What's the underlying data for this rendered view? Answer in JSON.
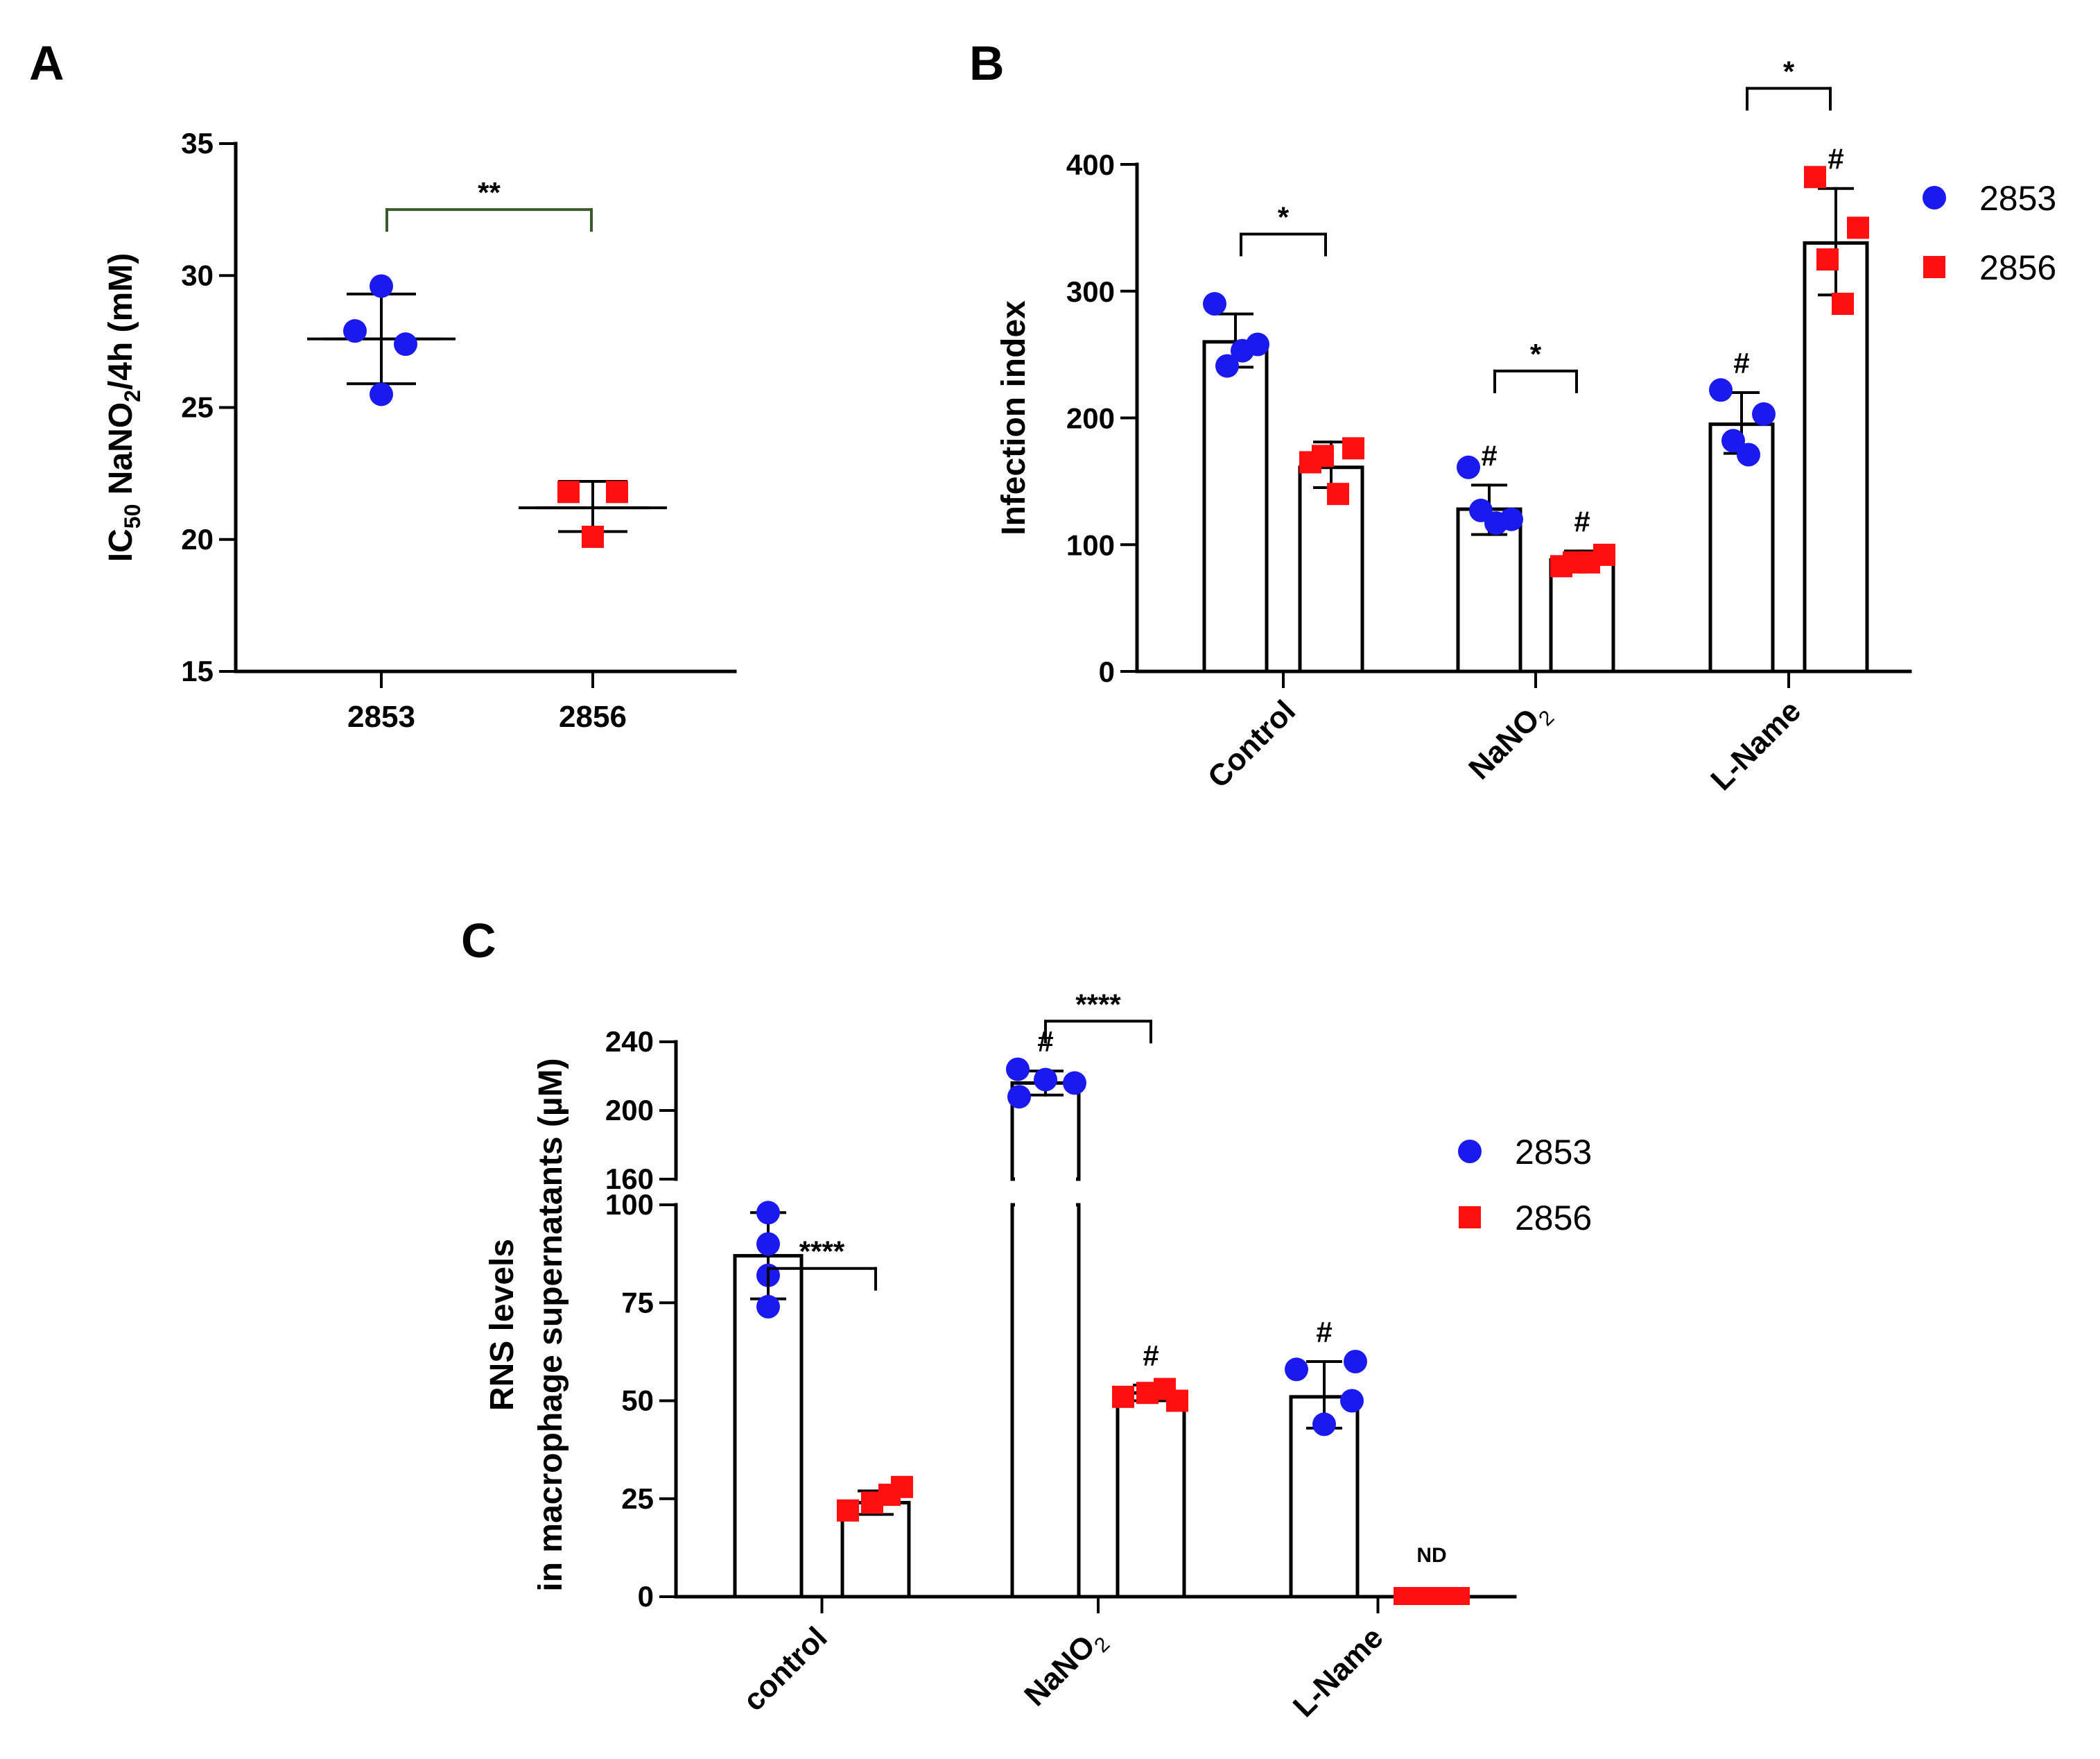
{
  "colors": {
    "s2853": "#1a1aee",
    "s2856": "#ff1010",
    "axis": "#000000",
    "bracketA": "#3a5a2a"
  },
  "chart_data": [
    {
      "panel": "A",
      "type": "scatter",
      "ylabel_parts": [
        "IC",
        "50",
        " NaNO",
        "2",
        "/4h (mM)"
      ],
      "categories": [
        "2853",
        "2856"
      ],
      "ylim": [
        15,
        35
      ],
      "yticks": [
        15,
        20,
        25,
        30,
        35
      ],
      "series": [
        {
          "key": "s2853",
          "category": "2853",
          "marker": "circle",
          "points": [
            29.6,
            27.9,
            27.4,
            25.5
          ],
          "mean": 27.6,
          "sd_low": 25.9,
          "sd_high": 29.3
        },
        {
          "key": "s2856",
          "category": "2856",
          "marker": "square",
          "points": [
            21.8,
            21.8,
            20.1
          ],
          "mean": 21.2,
          "sd_low": 20.3,
          "sd_high": 22.2
        }
      ],
      "significance": [
        {
          "from": "2853",
          "to": "2856",
          "label": "**",
          "y": 32.5
        }
      ]
    },
    {
      "panel": "B",
      "type": "bar",
      "ylabel": "Infection index",
      "categories": [
        {
          "label": "Control",
          "sub": ""
        },
        {
          "label": "NaNO",
          "sub": "2"
        },
        {
          "label": "L-Name",
          "sub": ""
        }
      ],
      "ylim": [
        0,
        400
      ],
      "yticks": [
        0,
        100,
        200,
        300,
        400
      ],
      "series": [
        {
          "name": "2853",
          "key": "s2853",
          "marker": "circle",
          "means": [
            260,
            128,
            195
          ],
          "sd": [
            [
              240,
              282
            ],
            [
              108,
              147
            ],
            [
              172,
              220
            ]
          ],
          "points": [
            [
              290,
              258,
              241,
              253
            ],
            [
              161,
              120,
              127,
              117
            ],
            [
              222,
              203,
              182,
              171
            ]
          ],
          "hash": [
            "",
            "#",
            "#"
          ]
        },
        {
          "name": "2856",
          "key": "s2856",
          "marker": "square",
          "means": [
            161,
            88,
            338
          ],
          "sd": [
            [
              145,
              181
            ],
            [
              82,
              95
            ],
            [
              297,
              381
            ]
          ],
          "points": [
            [
              165,
              176,
              170,
              140
            ],
            [
              83,
              92,
              86,
              86
            ],
            [
              390,
              350,
              325,
              290
            ]
          ],
          "hash": [
            "",
            "#",
            "#"
          ]
        }
      ],
      "significance": [
        {
          "group": 0,
          "label": "*",
          "y": 345
        },
        {
          "group": 1,
          "label": "*",
          "y": 237
        },
        {
          "group": 2,
          "label": "*",
          "y": 460
        }
      ],
      "legend": {
        "placement": "right",
        "items": [
          "2853",
          "2856"
        ]
      }
    },
    {
      "panel": "C",
      "type": "bar",
      "ylabel_lines": [
        "RNS levels",
        "in macrophage supernatants (µM)"
      ],
      "categories": [
        {
          "label": "control",
          "sub": ""
        },
        {
          "label": "NaNO",
          "sub": "2"
        },
        {
          "label": "L-Name",
          "sub": ""
        }
      ],
      "axis_break": {
        "lower": [
          0,
          100
        ],
        "upper": [
          160,
          240
        ]
      },
      "yticks_lower": [
        0,
        25,
        50,
        75,
        100
      ],
      "yticks_upper": [
        160,
        200,
        240
      ],
      "series": [
        {
          "name": "2853",
          "key": "s2853",
          "marker": "circle",
          "means": [
            87,
            216,
            51
          ],
          "sd": [
            [
              76,
              98
            ],
            [
              209,
              223
            ],
            [
              43,
              60
            ]
          ],
          "points": [
            [
              98,
              90,
              82,
              74
            ],
            [
              224,
              218,
              208,
              216
            ],
            [
              58,
              50,
              44,
              60
            ]
          ],
          "hash": [
            "",
            "#",
            "#"
          ]
        },
        {
          "name": "2856",
          "key": "s2856",
          "marker": "square",
          "means": [
            24,
            52,
            0
          ],
          "sd": [
            [
              21,
              27
            ],
            [
              50,
              54
            ],
            [
              0,
              0
            ]
          ],
          "points": [
            [
              22,
              26,
              24,
              28
            ],
            [
              51,
              53,
              52,
              50
            ],
            [
              0,
              0,
              0,
              0
            ]
          ],
          "hash": [
            "",
            "#",
            "ND"
          ]
        }
      ],
      "significance": [
        {
          "group": 0,
          "label": "****",
          "value": 108,
          "segment": "lower"
        },
        {
          "group": 1,
          "label": "****",
          "value": 252,
          "segment": "upper"
        }
      ],
      "legend": {
        "placement": "right",
        "items": [
          "2853",
          "2856"
        ]
      }
    }
  ],
  "panel_letters": {
    "a": "A",
    "b": "B",
    "c": "C"
  }
}
